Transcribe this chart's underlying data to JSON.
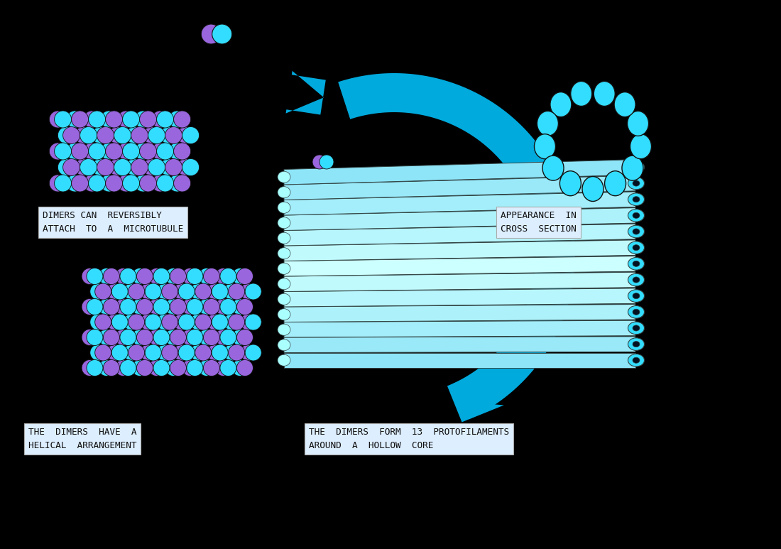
{
  "bg_color": "#000000",
  "cyan_color": "#33DDFF",
  "cyan_bright": "#00EEFF",
  "purple_color": "#9966DD",
  "arrow_color": "#00AADD",
  "arrow_color2": "#0099CC",
  "tube_light": "#CCFFFF",
  "tube_mid": "#88EEFF",
  "tube_dark": "#22CCDD",
  "text_bg": "#DDEEFF",
  "text_color": "#111111",
  "label1": "DIMERS CAN  REVERSIBLY\nATTACH  TO  A  MICROTUBULE",
  "label2": "APPEARANCE  IN\nCROSS  SECTION",
  "label3": "THE  DIMERS  HAVE  A\nHELICAL  ARRANGEMENT",
  "label4": "THE  DIMERS  FORM  13  PROTOFILAMENTS\nAROUND  A  HOLLOW  CORE"
}
